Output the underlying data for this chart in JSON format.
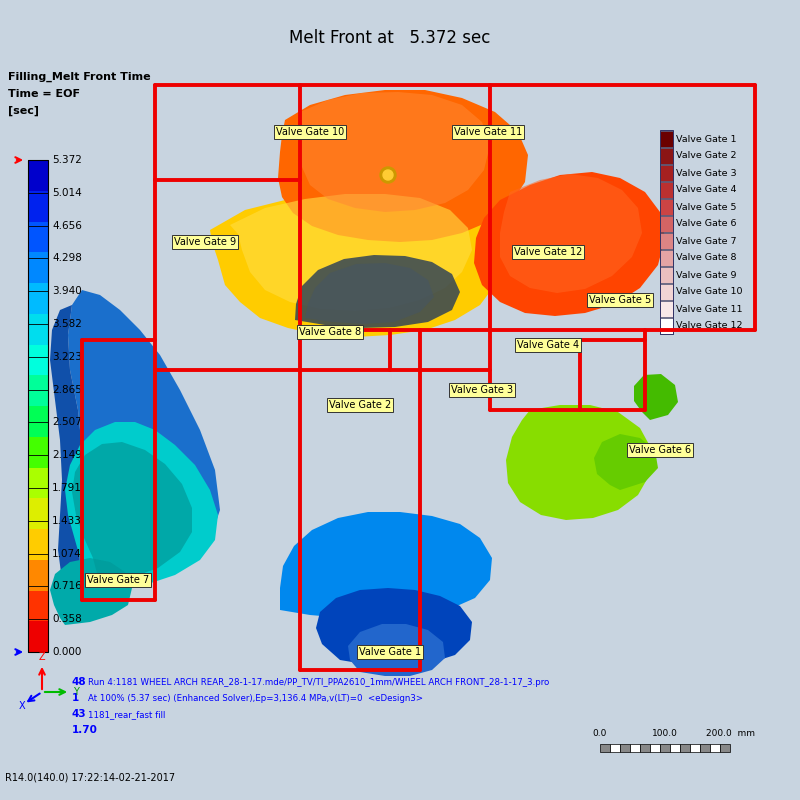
{
  "title": "Melt Front at   5.372 sec",
  "colorbar_title": "Filling_Melt Front Time",
  "colorbar_subtitle1": "Time = EOF",
  "colorbar_subtitle2": "[sec]",
  "colorbar_values": [
    5.372,
    5.014,
    4.656,
    4.298,
    3.94,
    3.582,
    3.223,
    2.865,
    2.507,
    2.149,
    1.791,
    1.433,
    1.074,
    0.716,
    0.358,
    0.0
  ],
  "background_color": "#c8d4e0",
  "valve_gates": [
    "Valve Gate 1",
    "Valve Gate 2",
    "Valve Gate 3",
    "Valve Gate 4",
    "Valve Gate 5",
    "Valve Gate 6",
    "Valve Gate 7",
    "Valve Gate 8",
    "Valve Gate 9",
    "Valve Gate 10",
    "Valve Gate 11",
    "Valve Gate 12"
  ],
  "legend_colors": [
    "#6B0000",
    "#8B1515",
    "#A52020",
    "#BB3030",
    "#CC4444",
    "#D46464",
    "#DC8484",
    "#E4A4A4",
    "#EBBFBF",
    "#F2D4D4",
    "#F8E8E8",
    "#FFFFFF"
  ],
  "cb_colors": [
    "#0000CC",
    "#0022EE",
    "#0055FF",
    "#0088FF",
    "#00BBFF",
    "#00DDEE",
    "#00FFDD",
    "#00FF99",
    "#00FF55",
    "#44FF00",
    "#AAFF00",
    "#DDEE00",
    "#FFCC00",
    "#FF8800",
    "#FF3300",
    "#EE0000"
  ],
  "info_line1": "Run 4:1181 WHEEL ARCH REAR_28-1-17.mde/PP_TV/TI_PPA2610_1mm/WHEEL ARCH FRONT_28-1-17_3.pro",
  "info_line2": "At 100% (5.37 sec) (Enhanced Solver),Ep=3,136.4 MPa,v(LT)=0  <eDesign3>",
  "info_line3": "1181_rear_fast fill",
  "footer_text": "R14.0(140.0) 17:22:14-02-21-2017"
}
